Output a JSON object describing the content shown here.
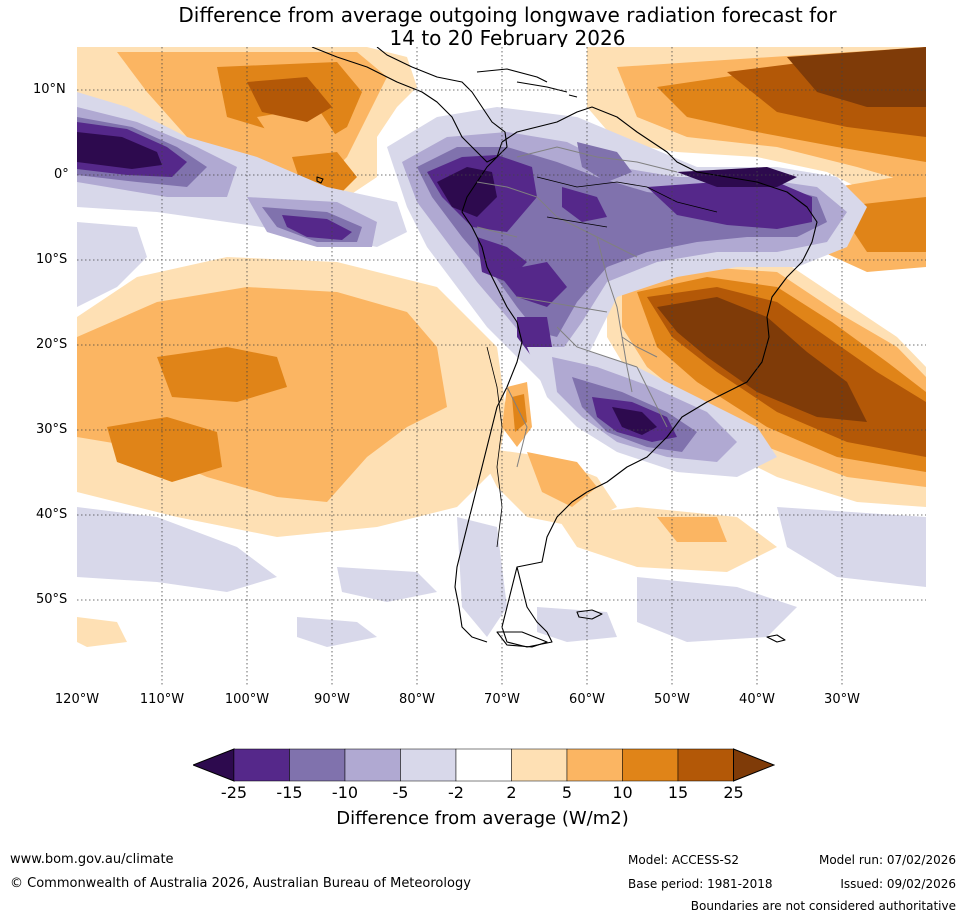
{
  "title": {
    "line1": "Difference from average outgoing longwave radiation forecast for",
    "line2": "14 to 20 February 2026"
  },
  "map": {
    "lat_labels": [
      "10°N",
      "0°",
      "10°S",
      "20°S",
      "30°S",
      "40°S",
      "50°S"
    ],
    "lon_labels": [
      "120°W",
      "110°W",
      "100°W",
      "90°W",
      "80°W",
      "70°W",
      "60°W",
      "50°W",
      "40°W",
      "30°W"
    ],
    "lat_range": [
      -60,
      15
    ],
    "lon_range": [
      -120,
      -20
    ],
    "feature_names": [
      "enhanced convection Amazon basin",
      "suppressed convection southeast Brazil",
      "enhanced convection southern Brazil/Uruguay",
      "enhanced convection eastern equatorial Pacific",
      "suppressed convection tropical Atlantic"
    ]
  },
  "colorbar": {
    "colors": [
      "#2d0a4e",
      "#55288a",
      "#8072ad",
      "#b0a9d2",
      "#d8d8ea",
      "#ffffff",
      "#fee0b4",
      "#fbb562",
      "#e08418",
      "#b35807",
      "#7f3b08"
    ],
    "tick_labels": [
      "-25",
      "-15",
      "-10",
      "-5",
      "-2",
      "2",
      "5",
      "10",
      "15",
      "25"
    ],
    "title": "Difference from average (W/m2)"
  },
  "footer": {
    "website": "www.bom.gov.au/climate",
    "copyright": "© Commonwealth of Australia 2026, Australian Bureau of Meteorology",
    "model": "Model: ACCESS-S2",
    "base_period": "Base period: 1981-2018",
    "model_run": "Model run: 07/02/2026",
    "issued": "Issued: 09/02/2026",
    "disclaimer": "Boundaries are not considered authoritative"
  }
}
